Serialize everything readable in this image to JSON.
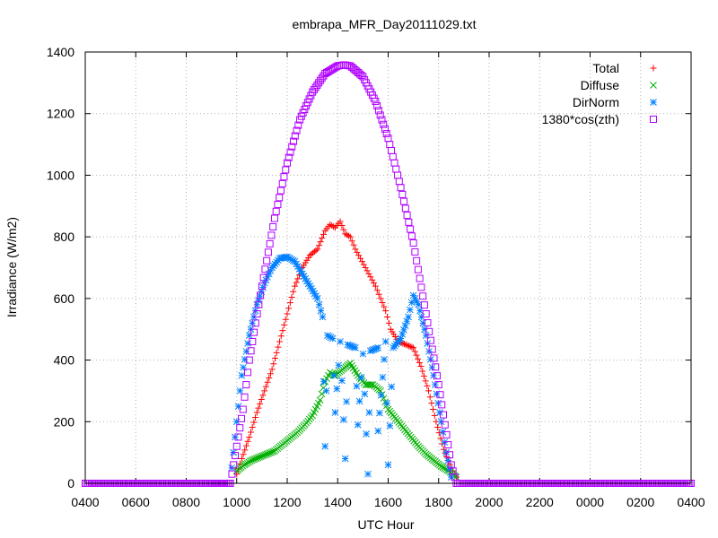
{
  "chart_data": {
    "type": "scatter",
    "title": "embrapa_MFR_Day20111029.txt",
    "xlabel": "UTC Hour",
    "ylabel": "Irradiance (W/m2)",
    "xlim": [
      0,
      24
    ],
    "ylim": [
      0,
      1400
    ],
    "grid": true,
    "legend_position": "top-right",
    "x_tick_labels": [
      "0400",
      "0600",
      "0800",
      "1000",
      "1200",
      "1400",
      "1600",
      "1800",
      "2000",
      "2200",
      "0000",
      "0200",
      "0400"
    ],
    "y_ticks": [
      0,
      200,
      400,
      600,
      800,
      1000,
      1200,
      1400
    ],
    "x_tick_hours_since_start": [
      0,
      2,
      4,
      6,
      8,
      10,
      12,
      14,
      16,
      18,
      20,
      22,
      24
    ],
    "series": [
      {
        "name": "Total",
        "marker": "+",
        "color": "#ff0000",
        "points": [
          [
            6.0,
            30
          ],
          [
            6.2,
            80
          ],
          [
            6.5,
            150
          ],
          [
            6.8,
            230
          ],
          [
            7.1,
            300
          ],
          [
            7.4,
            370
          ],
          [
            7.7,
            460
          ],
          [
            8.0,
            550
          ],
          [
            8.3,
            640
          ],
          [
            8.6,
            700
          ],
          [
            8.9,
            740
          ],
          [
            9.2,
            760
          ],
          [
            9.5,
            820
          ],
          [
            9.7,
            840
          ],
          [
            9.9,
            830
          ],
          [
            10.1,
            850
          ],
          [
            10.3,
            810
          ],
          [
            10.5,
            800
          ],
          [
            10.7,
            760
          ],
          [
            10.9,
            730
          ],
          [
            11.1,
            700
          ],
          [
            11.3,
            670
          ],
          [
            11.5,
            640
          ],
          [
            11.7,
            600
          ],
          [
            11.9,
            560
          ],
          [
            12.1,
            500
          ],
          [
            12.4,
            460
          ],
          [
            12.7,
            450
          ],
          [
            13.0,
            440
          ],
          [
            13.3,
            380
          ],
          [
            13.6,
            300
          ],
          [
            13.9,
            200
          ],
          [
            14.2,
            110
          ],
          [
            14.5,
            50
          ],
          [
            14.7,
            20
          ]
        ]
      },
      {
        "name": "Diffuse",
        "marker": "x",
        "color": "#00b000",
        "points": [
          [
            6.0,
            40
          ],
          [
            6.3,
            60
          ],
          [
            6.6,
            75
          ],
          [
            6.9,
            85
          ],
          [
            7.2,
            95
          ],
          [
            7.5,
            105
          ],
          [
            7.8,
            125
          ],
          [
            8.1,
            145
          ],
          [
            8.4,
            165
          ],
          [
            8.7,
            190
          ],
          [
            9.0,
            220
          ],
          [
            9.3,
            270
          ],
          [
            9.5,
            330
          ],
          [
            9.7,
            360
          ],
          [
            9.9,
            350
          ],
          [
            10.2,
            370
          ],
          [
            10.5,
            390
          ],
          [
            10.8,
            350
          ],
          [
            11.1,
            320
          ],
          [
            11.4,
            320
          ],
          [
            11.7,
            300
          ],
          [
            12.0,
            240
          ],
          [
            12.3,
            210
          ],
          [
            12.6,
            180
          ],
          [
            12.9,
            150
          ],
          [
            13.2,
            120
          ],
          [
            13.5,
            95
          ],
          [
            13.8,
            75
          ],
          [
            14.1,
            55
          ],
          [
            14.4,
            40
          ],
          [
            14.7,
            20
          ]
        ]
      },
      {
        "name": "DirNorm",
        "marker": "*",
        "color": "#0080ff",
        "points": [
          [
            5.8,
            50
          ],
          [
            6.0,
            200
          ],
          [
            6.2,
            350
          ],
          [
            6.5,
            480
          ],
          [
            6.8,
            580
          ],
          [
            7.1,
            650
          ],
          [
            7.4,
            700
          ],
          [
            7.7,
            730
          ],
          [
            8.0,
            735
          ],
          [
            8.3,
            720
          ],
          [
            8.6,
            680
          ],
          [
            8.9,
            640
          ],
          [
            9.2,
            600
          ],
          [
            9.4,
            540
          ],
          [
            9.6,
            480
          ],
          [
            9.8,
            470
          ],
          [
            10.1,
            460
          ],
          [
            10.4,
            450
          ],
          [
            10.7,
            440
          ],
          [
            11.0,
            420
          ],
          [
            11.3,
            430
          ],
          [
            11.6,
            440
          ],
          [
            11.9,
            460
          ],
          [
            12.2,
            440
          ],
          [
            12.5,
            470
          ],
          [
            12.8,
            540
          ],
          [
            13.0,
            610
          ],
          [
            13.2,
            580
          ],
          [
            13.5,
            480
          ],
          [
            13.8,
            350
          ],
          [
            14.1,
            200
          ],
          [
            14.3,
            100
          ],
          [
            14.5,
            20
          ],
          [
            9.5,
            120
          ],
          [
            9.9,
            230
          ],
          [
            10.3,
            80
          ],
          [
            10.8,
            190
          ],
          [
            11.2,
            30
          ],
          [
            11.6,
            170
          ],
          [
            12.0,
            60
          ]
        ]
      },
      {
        "name": "1380*cos(zth)",
        "marker": "square",
        "color": "#b000ff",
        "points": [
          [
            0,
            0
          ],
          [
            1,
            0
          ],
          [
            2,
            0
          ],
          [
            3,
            0
          ],
          [
            4,
            0
          ],
          [
            5,
            0
          ],
          [
            5.75,
            0
          ],
          [
            6.0,
            120
          ],
          [
            6.25,
            240
          ],
          [
            6.5,
            400
          ],
          [
            6.75,
            520
          ],
          [
            7.0,
            640
          ],
          [
            7.5,
            860
          ],
          [
            8.0,
            1040
          ],
          [
            8.5,
            1180
          ],
          [
            9.0,
            1270
          ],
          [
            9.5,
            1330
          ],
          [
            10.0,
            1355
          ],
          [
            10.25,
            1358
          ],
          [
            10.5,
            1355
          ],
          [
            11.0,
            1320
          ],
          [
            11.5,
            1240
          ],
          [
            12.0,
            1120
          ],
          [
            12.5,
            960
          ],
          [
            13.0,
            780
          ],
          [
            13.5,
            550
          ],
          [
            14.0,
            320
          ],
          [
            14.25,
            190
          ],
          [
            14.5,
            60
          ],
          [
            14.7,
            0
          ],
          [
            15,
            0
          ],
          [
            16,
            0
          ],
          [
            17,
            0
          ],
          [
            18,
            0
          ],
          [
            19,
            0
          ],
          [
            20,
            0
          ],
          [
            21,
            0
          ],
          [
            22,
            0
          ],
          [
            23,
            0
          ],
          [
            24,
            0
          ]
        ]
      }
    ]
  }
}
